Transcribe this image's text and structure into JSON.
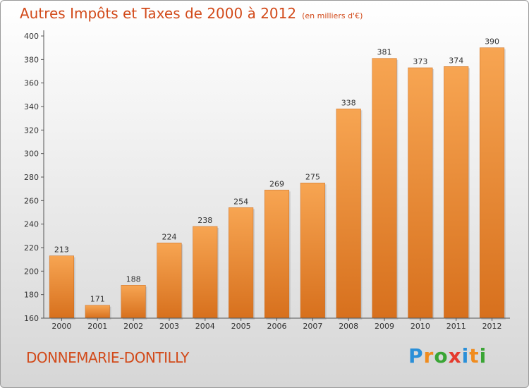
{
  "chart_data": {
    "type": "bar",
    "title": "Autres Impôts et Taxes de 2000 à 2012",
    "subtitle": "(en milliers d'€)",
    "categories": [
      "2000",
      "2001",
      "2002",
      "2003",
      "2004",
      "2005",
      "2006",
      "2007",
      "2008",
      "2009",
      "2010",
      "2011",
      "2012"
    ],
    "values": [
      213,
      171,
      188,
      224,
      238,
      254,
      269,
      275,
      338,
      381,
      373,
      374,
      390
    ],
    "ylim": [
      160,
      400
    ],
    "yticks": [
      160,
      180,
      200,
      220,
      240,
      260,
      280,
      300,
      320,
      340,
      360,
      380,
      400
    ],
    "grid": false,
    "bar_color": "#f0913c"
  },
  "footer": {
    "place_name": "DONNEMARIE-DONTILLY",
    "brand": "Proxiti",
    "brand_letter_colors": [
      "#2a8fd8",
      "#f08c1e",
      "#3aa535",
      "#e53b2e",
      "#2a8fd8",
      "#f08c1e",
      "#3aa535"
    ]
  }
}
